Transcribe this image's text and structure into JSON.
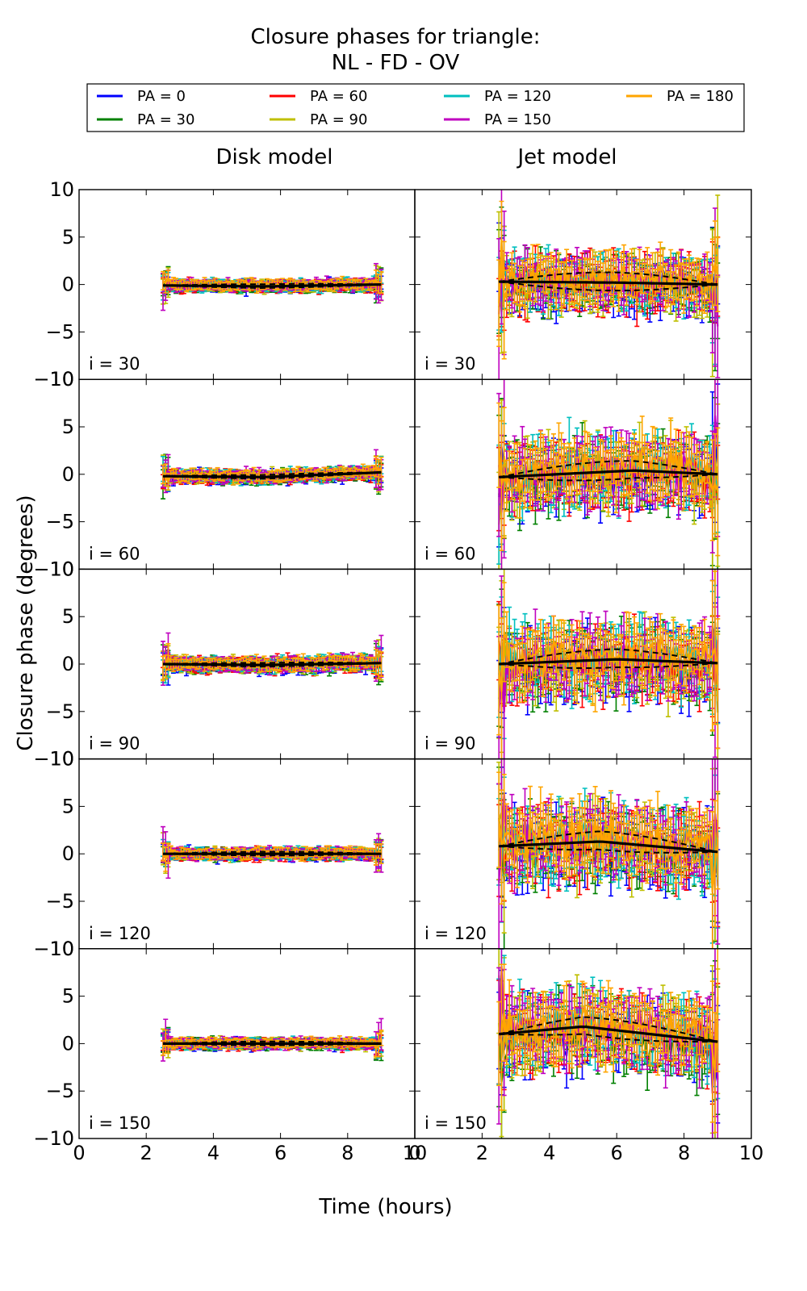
{
  "figure": {
    "title_line1": "Closure phases for triangle:",
    "title_line2": "NL - FD - OV",
    "xlabel": "Time (hours)",
    "ylabel": "Closure phase (degrees)",
    "column_titles": [
      "Disk model",
      "Jet model"
    ]
  },
  "legend": [
    {
      "label": "PA = 0",
      "color": "#0000ff"
    },
    {
      "label": "PA = 60",
      "color": "#ff0000"
    },
    {
      "label": "PA = 120",
      "color": "#00bfbf"
    },
    {
      "label": "PA = 180",
      "color": "#ffa500"
    },
    {
      "label": "PA = 30",
      "color": "#008000"
    },
    {
      "label": "PA = 90",
      "color": "#bfbf00"
    },
    {
      "label": "PA = 150",
      "color": "#bf00bf"
    }
  ],
  "chart_data": {
    "type": "line",
    "x_range": [
      0,
      10
    ],
    "y_range": [
      -10,
      10
    ],
    "x_ticks": [
      0,
      2,
      4,
      6,
      8,
      10
    ],
    "y_ticks": [
      -10,
      -5,
      0,
      5,
      10
    ],
    "x_tick_labels": [
      "0",
      "2",
      "4",
      "6",
      "8",
      "10"
    ],
    "y_tick_labels": [
      "−10",
      "−5",
      "0",
      "5",
      "10"
    ],
    "time_span": [
      2.5,
      9.0
    ],
    "series_names": [
      "PA = 0",
      "PA = 30",
      "PA = 60",
      "PA = 90",
      "PA = 120",
      "PA = 150",
      "PA = 180"
    ],
    "series_colors": [
      "#0000ff",
      "#008000",
      "#ff0000",
      "#bfbf00",
      "#00bfbf",
      "#bf00bf",
      "#ffa500"
    ],
    "panels": [
      {
        "row": 0,
        "col": 0,
        "label": "i = 30",
        "noise": 0.55,
        "model_trend": [
          [
            2.5,
            -0.1
          ],
          [
            5.5,
            -0.2
          ],
          [
            9.0,
            0.0
          ]
        ]
      },
      {
        "row": 0,
        "col": 1,
        "label": "i = 30",
        "noise": 2.5,
        "model_trend": [
          [
            2.5,
            0.3
          ],
          [
            6.0,
            0.2
          ],
          [
            9.0,
            0.0
          ]
        ]
      },
      {
        "row": 1,
        "col": 0,
        "label": "i = 60",
        "noise": 0.6,
        "model_trend": [
          [
            2.5,
            -0.2
          ],
          [
            5.5,
            -0.3
          ],
          [
            9.0,
            0.2
          ]
        ]
      },
      {
        "row": 1,
        "col": 1,
        "label": "i = 60",
        "noise": 3.2,
        "model_trend": [
          [
            2.5,
            -0.3
          ],
          [
            6.5,
            0.4
          ],
          [
            9.0,
            0.0
          ]
        ]
      },
      {
        "row": 2,
        "col": 0,
        "label": "i = 90",
        "noise": 0.7,
        "model_trend": [
          [
            2.5,
            0.0
          ],
          [
            5.5,
            -0.1
          ],
          [
            9.0,
            0.1
          ]
        ]
      },
      {
        "row": 2,
        "col": 1,
        "label": "i = 90",
        "noise": 3.3,
        "model_trend": [
          [
            2.5,
            0.0
          ],
          [
            6.0,
            0.5
          ],
          [
            9.0,
            0.1
          ]
        ]
      },
      {
        "row": 3,
        "col": 0,
        "label": "i = 120",
        "noise": 0.55,
        "model_trend": [
          [
            2.5,
            0.0
          ],
          [
            5.5,
            0.0
          ],
          [
            9.0,
            0.0
          ]
        ]
      },
      {
        "row": 3,
        "col": 1,
        "label": "i = 120",
        "noise": 3.4,
        "model_trend": [
          [
            2.5,
            0.8
          ],
          [
            5.5,
            1.3
          ],
          [
            9.0,
            0.2
          ]
        ]
      },
      {
        "row": 4,
        "col": 0,
        "label": "i = 150",
        "noise": 0.5,
        "model_trend": [
          [
            2.5,
            0.0
          ],
          [
            5.5,
            0.0
          ],
          [
            9.0,
            0.0
          ]
        ]
      },
      {
        "row": 4,
        "col": 1,
        "label": "i = 150",
        "noise": 3.3,
        "model_trend": [
          [
            2.5,
            1.0
          ],
          [
            5.0,
            1.8
          ],
          [
            9.0,
            0.2
          ]
        ]
      }
    ]
  }
}
